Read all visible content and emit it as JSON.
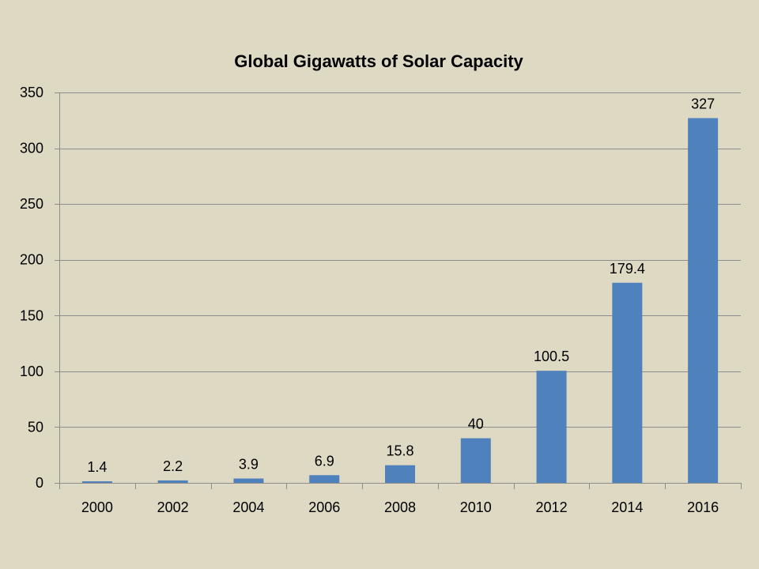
{
  "chart_data": {
    "type": "bar",
    "title": "Global Gigawatts of Solar Capacity",
    "categories": [
      "2000",
      "2002",
      "2004",
      "2006",
      "2008",
      "2010",
      "2012",
      "2014",
      "2016"
    ],
    "values": [
      1.4,
      2.2,
      3.9,
      6.9,
      15.8,
      40,
      100.5,
      179.4,
      327
    ],
    "data_labels": [
      "1.4",
      "2.2",
      "3.9",
      "6.9",
      "15.8",
      "40",
      "100.5",
      "179.4",
      "327"
    ],
    "ylim": [
      0,
      350
    ],
    "yticks": [
      "0",
      "50",
      "100",
      "150",
      "200",
      "250",
      "300",
      "350"
    ],
    "xlabel": "",
    "ylabel": "",
    "grid": true,
    "legend": "none",
    "colors": {
      "bar": "#4f81bd",
      "background": "#ddd9c3",
      "grid": "#8c8c8c"
    }
  }
}
